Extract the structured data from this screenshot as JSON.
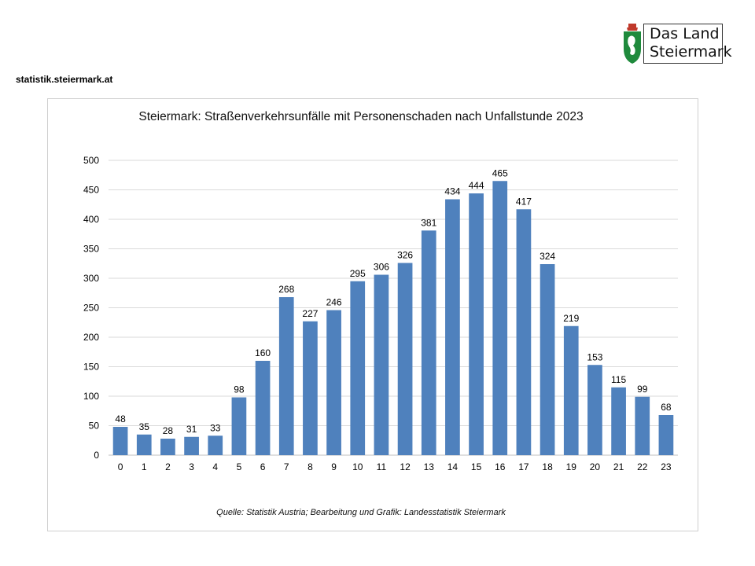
{
  "header": {
    "logo_line1": "Das Land",
    "logo_line2": "Steiermark",
    "site_url": "statistik.steiermark.at"
  },
  "colors": {
    "bar": "#4f81bd",
    "grid": "#d9d9d9",
    "crest_green": "#1f8a3c",
    "crest_white": "#ffffff",
    "crown_red": "#c0392b"
  },
  "chart_data": {
    "type": "bar",
    "title": "Steiermark: Straßenverkehrsunfälle  mit Personenschaden nach Unfallstunde  2023",
    "xlabel": "",
    "ylabel": "",
    "categories": [
      "0",
      "1",
      "2",
      "3",
      "4",
      "5",
      "6",
      "7",
      "8",
      "9",
      "10",
      "11",
      "12",
      "13",
      "14",
      "15",
      "16",
      "17",
      "18",
      "19",
      "20",
      "21",
      "22",
      "23"
    ],
    "values": [
      48,
      35,
      28,
      31,
      33,
      98,
      160,
      268,
      227,
      246,
      295,
      306,
      326,
      381,
      434,
      444,
      465,
      417,
      324,
      219,
      153,
      115,
      99,
      68
    ],
    "ylim": [
      0,
      500
    ],
    "yticks": [
      "0",
      "50",
      "100",
      "150",
      "200",
      "250",
      "300",
      "350",
      "400",
      "450",
      "500"
    ],
    "grid": true,
    "legend": "none",
    "data_labels": true,
    "source": "Quelle: Statistik Austria; Bearbeitung und Grafik: Landesstatistik Steiermark"
  }
}
